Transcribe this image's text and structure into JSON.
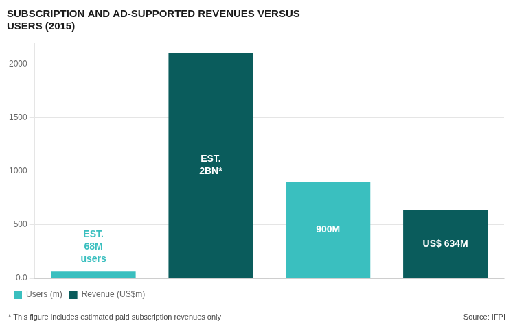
{
  "chart_data": {
    "type": "bar",
    "title": "SUBSCRIPTION AND AD-SUPPORTED REVENUES VERSUS\nUSERS (2015)",
    "categories": [
      null,
      null,
      null,
      null
    ],
    "series": [
      {
        "name": "Users (m)",
        "color": "#3abfbf",
        "values": [
          68,
          null,
          900,
          null
        ],
        "value_labels": [
          "EST.\n68M\nusers",
          null,
          "900M",
          null
        ]
      },
      {
        "name": "Revenue (US$m)",
        "color": "#0a5c5c",
        "values": [
          null,
          2100,
          null,
          634
        ],
        "value_labels": [
          null,
          "EST.\n2BN*",
          null,
          "US$ 634M"
        ]
      }
    ],
    "ylim": [
      0,
      2200
    ],
    "yticks": [
      {
        "value": 0,
        "label": "0.0"
      },
      500,
      1000,
      1500,
      2000
    ],
    "grid": true,
    "legend": "bottom",
    "data_labels": true,
    "tick_labels": "y",
    "annotations": [
      "* This figure includes estimated paid subscription revenues only",
      "Source: IFPI"
    ]
  }
}
